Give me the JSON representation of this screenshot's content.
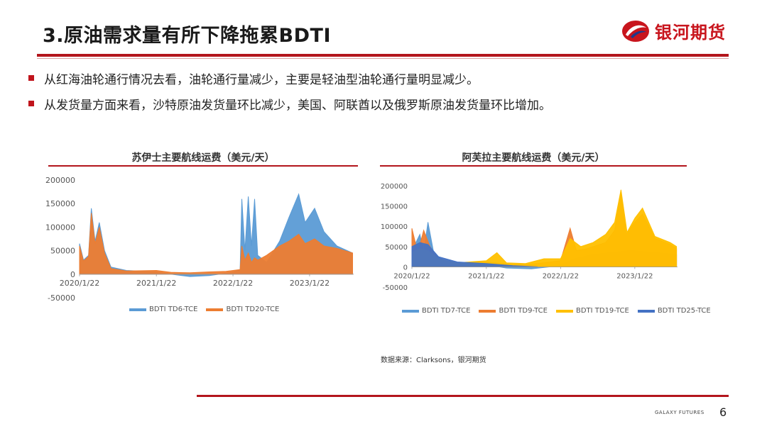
{
  "header": {
    "title": "3.原油需求量有所下降拖累BDTI",
    "logo_text": "银河期货",
    "brand_color": "#c8151d"
  },
  "bullets": [
    "从红海油轮通行情况去看，油轮通行量减少，主要是轻油型油轮通行量明显减少。",
    "从发货量方面来看，沙特原油发货量环比减少，美国、阿联酋以及俄罗斯原油发货量环比增加。"
  ],
  "source": "数据来源：Clarksons，银河期货",
  "footer": {
    "brand": "GALAXY FUTURES",
    "page": "6"
  },
  "chart_data": [
    {
      "type": "area",
      "title": "苏伊士主要航线运费（美元/天）",
      "ylim": [
        -50000,
        200000
      ],
      "y_ticks": [
        "200000",
        "150000",
        "100000",
        "50000",
        "0",
        "-50000"
      ],
      "x_ticks": [
        "2020/1/22",
        "2021/1/22",
        "2022/1/22",
        "2023/1/22"
      ],
      "series": [
        {
          "name": "BDTI TD6-TCE",
          "color": "#5b9bd5",
          "points": [
            [
              "2020-01-22",
              65000
            ],
            [
              "2020-02-10",
              30000
            ],
            [
              "2020-03-05",
              40000
            ],
            [
              "2020-03-18",
              140000
            ],
            [
              "2020-04-05",
              70000
            ],
            [
              "2020-04-25",
              110000
            ],
            [
              "2020-05-20",
              50000
            ],
            [
              "2020-06-20",
              15000
            ],
            [
              "2020-09-01",
              8000
            ],
            [
              "2021-01-22",
              5000
            ],
            [
              "2021-04-01",
              0
            ],
            [
              "2021-07-01",
              -5000
            ],
            [
              "2021-10-01",
              -3000
            ],
            [
              "2021-12-20",
              2000
            ],
            [
              "2022-01-22",
              5000
            ],
            [
              "2022-02-25",
              10000
            ],
            [
              "2022-03-05",
              160000
            ],
            [
              "2022-03-20",
              50000
            ],
            [
              "2022-04-05",
              165000
            ],
            [
              "2022-04-20",
              60000
            ],
            [
              "2022-05-05",
              160000
            ],
            [
              "2022-05-20",
              40000
            ],
            [
              "2022-07-01",
              25000
            ],
            [
              "2022-09-01",
              70000
            ],
            [
              "2022-10-15",
              120000
            ],
            [
              "2022-12-01",
              170000
            ],
            [
              "2023-01-01",
              110000
            ],
            [
              "2023-02-15",
              140000
            ],
            [
              "2023-04-01",
              90000
            ],
            [
              "2023-06-01",
              60000
            ],
            [
              "2023-08-15",
              45000
            ]
          ]
        },
        {
          "name": "BDTI TD20-TCE",
          "color": "#ed7d31",
          "points": [
            [
              "2020-01-22",
              60000
            ],
            [
              "2020-02-10",
              28000
            ],
            [
              "2020-03-05",
              38000
            ],
            [
              "2020-03-18",
              130000
            ],
            [
              "2020-04-05",
              65000
            ],
            [
              "2020-04-25",
              100000
            ],
            [
              "2020-05-20",
              45000
            ],
            [
              "2020-06-20",
              12000
            ],
            [
              "2020-09-01",
              7000
            ],
            [
              "2021-01-22",
              8000
            ],
            [
              "2021-04-01",
              4000
            ],
            [
              "2021-07-01",
              3000
            ],
            [
              "2021-10-01",
              5000
            ],
            [
              "2021-12-20",
              6000
            ],
            [
              "2022-01-22",
              8000
            ],
            [
              "2022-02-25",
              10000
            ],
            [
              "2022-03-05",
              60000
            ],
            [
              "2022-03-20",
              30000
            ],
            [
              "2022-04-05",
              45000
            ],
            [
              "2022-04-20",
              25000
            ],
            [
              "2022-05-05",
              35000
            ],
            [
              "2022-05-20",
              30000
            ],
            [
              "2022-07-01",
              40000
            ],
            [
              "2022-09-01",
              60000
            ],
            [
              "2022-10-15",
              70000
            ],
            [
              "2022-12-01",
              85000
            ],
            [
              "2023-01-01",
              65000
            ],
            [
              "2023-02-15",
              75000
            ],
            [
              "2023-04-01",
              60000
            ],
            [
              "2023-06-01",
              55000
            ],
            [
              "2023-08-15",
              45000
            ]
          ]
        }
      ]
    },
    {
      "type": "area",
      "title": "阿芙拉主要航线运费（美元/天）",
      "ylim": [
        -50000,
        200000
      ],
      "y_ticks": [
        "200000",
        "150000",
        "100000",
        "50000",
        "0",
        "-50000"
      ],
      "x_ticks": [
        "2020/1/22",
        "2021/1/22",
        "2022/1/22",
        "2023/1/22"
      ],
      "series": [
        {
          "name": "BDTI TD7-TCE",
          "color": "#5b9bd5",
          "points": [
            [
              "2020-01-22",
              40000
            ],
            [
              "2020-03-01",
              80000
            ],
            [
              "2020-03-20",
              35000
            ],
            [
              "2020-04-10",
              110000
            ],
            [
              "2020-05-10",
              30000
            ],
            [
              "2020-07-01",
              15000
            ],
            [
              "2020-10-01",
              8000
            ],
            [
              "2021-01-22",
              5000
            ],
            [
              "2021-05-01",
              -3000
            ],
            [
              "2021-09-01",
              -5000
            ],
            [
              "2021-12-01",
              0
            ],
            [
              "2022-01-22",
              5000
            ],
            [
              "2022-04-01",
              20000
            ],
            [
              "2022-07-01",
              30000
            ],
            [
              "2022-10-01",
              35000
            ],
            [
              "2023-01-01",
              40000
            ],
            [
              "2023-05-01",
              35000
            ],
            [
              "2023-08-15",
              30000
            ]
          ]
        },
        {
          "name": "BDTI TD9-TCE",
          "color": "#ed7d31",
          "points": [
            [
              "2020-01-22",
              95000
            ],
            [
              "2020-02-20",
              35000
            ],
            [
              "2020-03-20",
              90000
            ],
            [
              "2020-04-20",
              50000
            ],
            [
              "2020-06-01",
              20000
            ],
            [
              "2020-09-01",
              10000
            ],
            [
              "2021-01-22",
              12000
            ],
            [
              "2021-06-01",
              5000
            ],
            [
              "2021-10-01",
              8000
            ],
            [
              "2022-01-22",
              15000
            ],
            [
              "2022-03-10",
              95000
            ],
            [
              "2022-04-10",
              40000
            ],
            [
              "2022-06-01",
              45000
            ],
            [
              "2022-09-01",
              60000
            ],
            [
              "2022-10-15",
              90000
            ],
            [
              "2022-11-15",
              185000
            ],
            [
              "2022-12-10",
              80000
            ],
            [
              "2023-01-22",
              110000
            ],
            [
              "2023-03-01",
              130000
            ],
            [
              "2023-05-01",
              70000
            ],
            [
              "2023-07-15",
              55000
            ],
            [
              "2023-08-15",
              45000
            ]
          ]
        },
        {
          "name": "BDTI TD19-TCE",
          "color": "#ffc000",
          "points": [
            [
              "2020-01-22",
              35000
            ],
            [
              "2020-03-01",
              45000
            ],
            [
              "2020-04-10",
              40000
            ],
            [
              "2020-06-01",
              20000
            ],
            [
              "2020-09-01",
              10000
            ],
            [
              "2021-01-22",
              15000
            ],
            [
              "2021-03-15",
              35000
            ],
            [
              "2021-05-01",
              10000
            ],
            [
              "2021-08-01",
              8000
            ],
            [
              "2021-11-01",
              20000
            ],
            [
              "2022-01-22",
              20000
            ],
            [
              "2022-03-10",
              70000
            ],
            [
              "2022-05-01",
              50000
            ],
            [
              "2022-07-01",
              60000
            ],
            [
              "2022-09-01",
              80000
            ],
            [
              "2022-10-15",
              110000
            ],
            [
              "2022-11-15",
              190000
            ],
            [
              "2022-12-15",
              85000
            ],
            [
              "2023-01-22",
              120000
            ],
            [
              "2023-03-01",
              145000
            ],
            [
              "2023-05-01",
              75000
            ],
            [
              "2023-07-15",
              60000
            ],
            [
              "2023-08-15",
              50000
            ]
          ]
        },
        {
          "name": "BDTI TD25-TCE",
          "color": "#4472c4",
          "points": [
            [
              "2020-01-22",
              50000
            ],
            [
              "2020-03-01",
              60000
            ],
            [
              "2020-04-10",
              55000
            ],
            [
              "2020-06-01",
              25000
            ],
            [
              "2020-09-01",
              12000
            ],
            [
              "2021-01-22",
              8000
            ],
            [
              "2021-06-01",
              3000
            ],
            [
              "2021-10-01",
              0
            ]
          ]
        }
      ]
    }
  ]
}
